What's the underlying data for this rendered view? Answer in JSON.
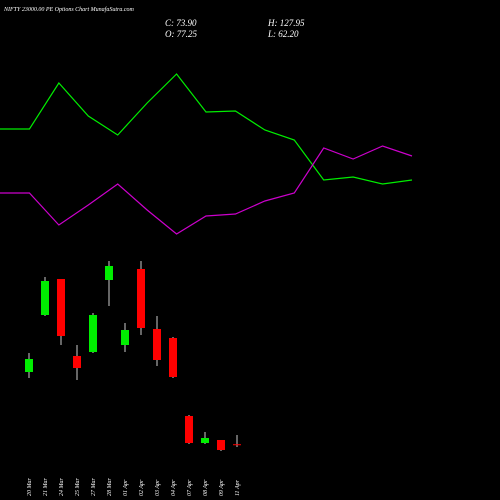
{
  "chart_data": [
    {
      "type": "line",
      "title": "NIFTY 23000.00 PE Options Chart MunafaSutra.com",
      "x": [
        0,
        1,
        2,
        3,
        4,
        5,
        6,
        7,
        8,
        9,
        10,
        11,
        12,
        13,
        14
      ],
      "xlim": [
        0,
        14
      ],
      "ylim": [
        0,
        500
      ],
      "series": [
        {
          "name": "green line",
          "color": "#00ee00",
          "values": [
            371,
            371,
            417,
            384,
            365,
            397,
            426,
            388,
            389,
            370,
            360,
            320,
            323,
            316,
            320
          ]
        },
        {
          "name": "magenta line",
          "color": "#cc00cc",
          "values": [
            307,
            307,
            275,
            295,
            316,
            290,
            266,
            284,
            286,
            299,
            307,
            352,
            341,
            354,
            344
          ]
        }
      ]
    },
    {
      "type": "candlestick",
      "close_label": "C: 73.90",
      "open_label": "O: 77.25",
      "high_label": "H: 127.95",
      "low_label": "L: 62.20",
      "categories": [
        "20 Mar",
        "21 Mar",
        "24 Mar",
        "25 Mar",
        "27 Mar",
        "28 Mar",
        "01 Apr",
        "02 Apr",
        "03 Apr",
        "04 Apr",
        "07 Apr",
        "08 Apr",
        "09 Apr",
        "11 Apr"
      ],
      "open": [
        474.5,
        788,
        986,
        562.5,
        584.5,
        980.5,
        623,
        1041,
        711,
        661.5,
        232.5,
        84,
        100.5,
        77.25
      ],
      "high": [
        579,
        997,
        986,
        623,
        799,
        1085,
        744,
        1085,
        782.5,
        667,
        238,
        144.5,
        100.5,
        127.95
      ],
      "low": [
        441.5,
        782.5,
        623,
        430.5,
        579,
        837.5,
        584.5,
        678,
        507.5,
        441.5,
        78.5,
        78.5,
        40,
        62.2
      ],
      "close": [
        546,
        975,
        672.5,
        496.5,
        788,
        1057.5,
        705.5,
        716.5,
        540.5,
        447,
        84,
        111.5,
        45.5,
        73.9
      ],
      "up_color": "#00ee00",
      "down_color": "#ff0000",
      "wick_color": "#cccccc",
      "ylim": [
        -9.5,
        1145.5
      ]
    }
  ]
}
